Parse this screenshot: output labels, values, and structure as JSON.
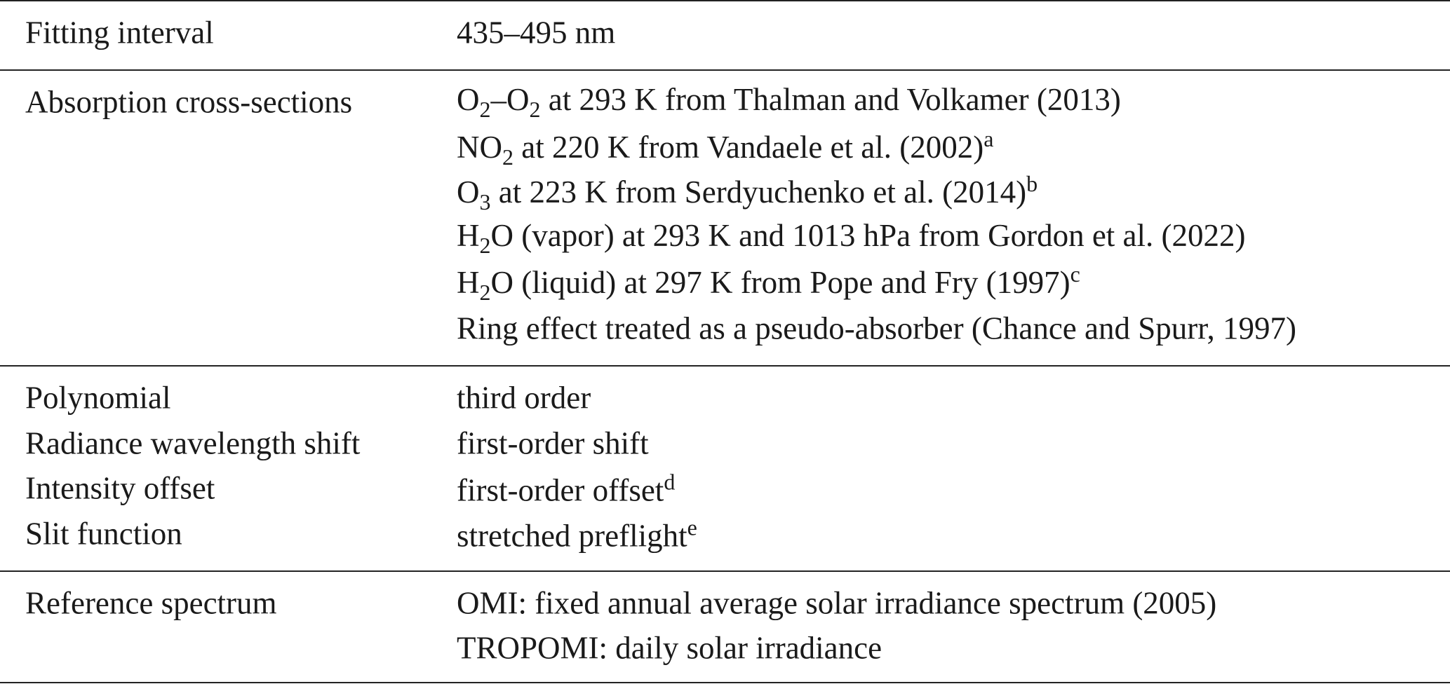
{
  "table": {
    "sections": [
      {
        "rows": [
          {
            "label": "Fitting interval",
            "value": [
              [
                "435–495 nm"
              ]
            ]
          }
        ]
      },
      {
        "rows": [
          {
            "label": "Absorption cross-sections",
            "value": [
              [
                "O",
                {
                  "sub": "2"
                },
                "–O",
                {
                  "sub": "2"
                },
                " at 293 K from Thalman and Volkamer (2013)"
              ],
              [
                "NO",
                {
                  "sub": "2"
                },
                " at 220 K from Vandaele et al. (2002)",
                {
                  "sup": "a"
                }
              ],
              [
                "O",
                {
                  "sub": "3"
                },
                " at 223 K from Serdyuchenko et al. (2014)",
                {
                  "sup": "b"
                }
              ],
              [
                "H",
                {
                  "sub": "2"
                },
                "O (vapor) at 293 K and 1013 hPa from Gordon et al. (2022)"
              ],
              [
                "H",
                {
                  "sub": "2"
                },
                "O (liquid) at 297 K from Pope and Fry (1997)",
                {
                  "sup": "c"
                }
              ],
              [
                "Ring effect treated as a pseudo-absorber (Chance and Spurr, 1997)"
              ]
            ]
          }
        ]
      },
      {
        "rows": [
          {
            "label": "Polynomial",
            "value": [
              [
                "third order"
              ]
            ]
          },
          {
            "label": "Radiance wavelength shift",
            "value": [
              [
                "first-order shift"
              ]
            ]
          },
          {
            "label": "Intensity offset",
            "value": [
              [
                "first-order offset",
                {
                  "sup": "d"
                }
              ]
            ]
          },
          {
            "label": "Slit function",
            "value": [
              [
                "stretched preflight",
                {
                  "sup": "e"
                }
              ]
            ]
          }
        ]
      },
      {
        "rows": [
          {
            "label": "Reference spectrum",
            "value": [
              [
                "OMI: fixed annual average solar irradiance spectrum (2005)"
              ],
              [
                "TROPOMI: daily solar irradiance"
              ]
            ]
          }
        ]
      }
    ]
  }
}
